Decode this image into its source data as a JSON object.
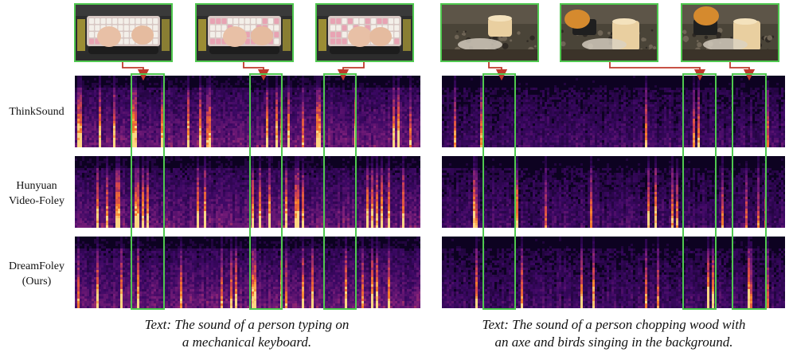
{
  "row_labels": [
    {
      "lines": [
        "ThinkSound"
      ]
    },
    {
      "lines": [
        "Hunyuan",
        "Video-Foley"
      ]
    },
    {
      "lines": [
        "DreamFoley",
        "(Ours)"
      ]
    }
  ],
  "captions": {
    "left": {
      "line1": "Text: The sound of a person typing on",
      "line2": "a mechanical keyboard."
    },
    "right": {
      "line1": "Text: The sound of a person chopping wood with",
      "line2": "an axe and birds singing in the background."
    }
  },
  "colors": {
    "highlight_box": "#4fc84f",
    "arrow": "#c0392b",
    "spec_dark": "#0d0221",
    "spec_mid": "#7b1e7a",
    "spec_hot": "#f57c2a",
    "spec_bright": "#ffd27a"
  },
  "frame_content": {
    "left": "keyboard-typing-video-frame",
    "right": "axe-wood-chopping-video-frame"
  }
}
